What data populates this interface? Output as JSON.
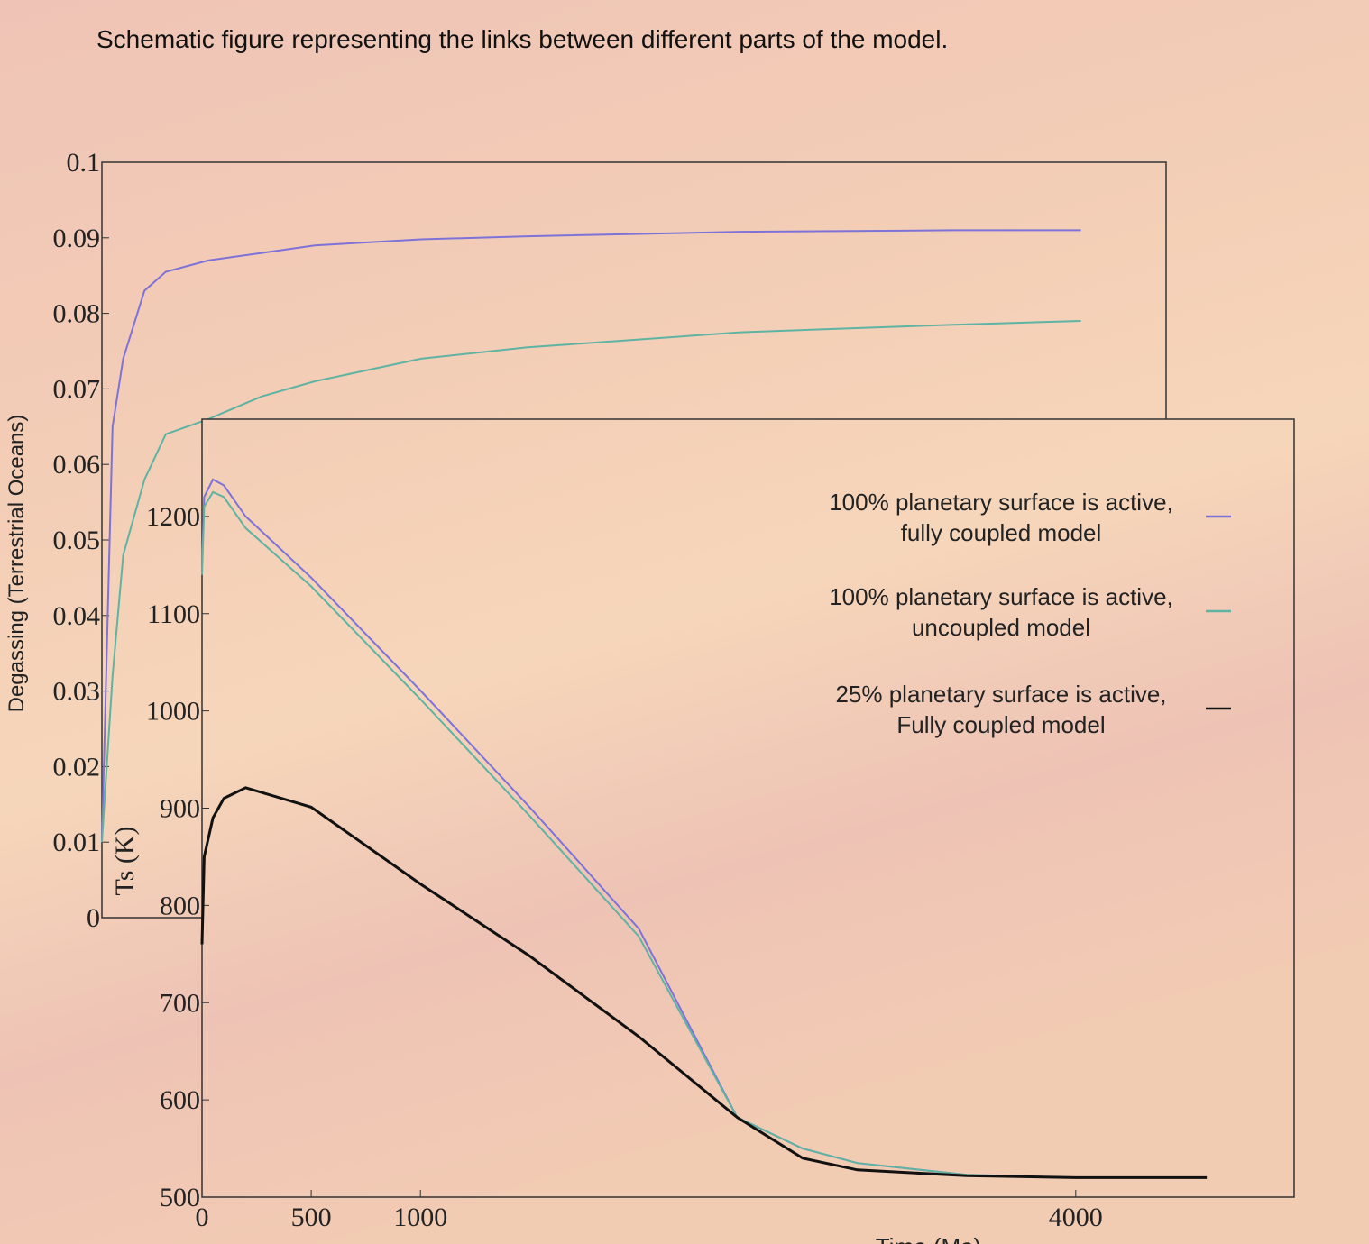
{
  "title": "Schematic figure representing the links between different parts of the model.",
  "chart_data": [
    {
      "type": "line",
      "ylabel": "Degassing (Terrestrial Oceans)",
      "x": [
        0,
        50,
        100,
        200,
        300,
        500,
        750,
        1000,
        1500,
        2000,
        3000,
        4000,
        4600
      ],
      "series": [
        {
          "color": "#7d72d8",
          "values": [
            0.01,
            0.065,
            0.074,
            0.083,
            0.0855,
            0.087,
            0.088,
            0.089,
            0.0898,
            0.0902,
            0.0908,
            0.091,
            0.091
          ]
        },
        {
          "color": "#5fb3a3",
          "values": [
            0.01,
            0.032,
            0.048,
            0.058,
            0.064,
            0.066,
            0.069,
            0.071,
            0.074,
            0.0755,
            0.0775,
            0.0785,
            0.079
          ]
        }
      ],
      "xlim": [
        0,
        5000
      ],
      "ylim": [
        0,
        0.1
      ],
      "yticks": [
        0,
        0.01,
        0.02,
        0.03,
        0.04,
        0.05,
        0.06,
        0.07,
        0.08,
        0.09,
        0.1
      ],
      "grid": false
    },
    {
      "type": "line",
      "xlabel": "Time (Ma)",
      "ylabel": "Ts (K)",
      "x": [
        0,
        10,
        50,
        100,
        200,
        500,
        1000,
        1500,
        2000,
        2450,
        2750,
        3000,
        3500,
        4000,
        4600
      ],
      "series": [
        {
          "name": "100% planetary surface is active,\nfully coupled model",
          "color": "#7d72d8",
          "values": [
            1150,
            1220,
            1238,
            1232,
            1200,
            1137,
            1021,
            901,
            776,
            582,
            550,
            535,
            523,
            520,
            520
          ]
        },
        {
          "name": "100% planetary surface is active,\nuncoupled model",
          "color": "#5fb3a3",
          "values": [
            1140,
            1210,
            1225,
            1220,
            1188,
            1128,
            1012,
            892,
            768,
            582,
            550,
            535,
            523,
            520,
            520
          ]
        },
        {
          "name": "25% planetary surface is active,\nFully coupled model",
          "color": "#111111",
          "values": [
            760,
            850,
            890,
            910,
            921,
            901,
            822,
            748,
            665,
            582,
            540,
            528,
            522,
            520,
            520
          ]
        }
      ],
      "xlim": [
        0,
        5000
      ],
      "ylim": [
        500,
        1300
      ],
      "xticks": [
        0,
        500,
        1000,
        4000
      ],
      "yticks": [
        500,
        600,
        700,
        800,
        900,
        1000,
        1100,
        1200
      ],
      "grid": false,
      "legend": "upper right"
    }
  ]
}
